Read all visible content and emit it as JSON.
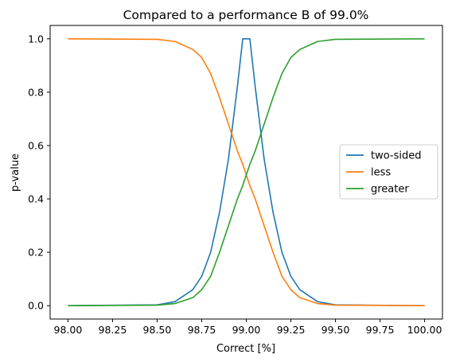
{
  "chart_data": {
    "type": "line",
    "title": "Compared to a performance B of 99.0%",
    "xlabel": "Correct [%]",
    "ylabel": "p-value",
    "xlim": [
      97.9,
      100.1
    ],
    "ylim": [
      -0.05,
      1.05
    ],
    "xticks": [
      "98.00",
      "98.25",
      "98.50",
      "98.75",
      "99.00",
      "99.25",
      "99.50",
      "99.75",
      "100.00"
    ],
    "yticks": [
      "0.0",
      "0.2",
      "0.4",
      "0.6",
      "0.8",
      "1.0"
    ],
    "grid": false,
    "legend_position": "center-right",
    "x": [
      98.0,
      98.5,
      98.6,
      98.7,
      98.75,
      98.8,
      98.85,
      98.9,
      98.95,
      98.98,
      99.0,
      99.02,
      99.05,
      99.1,
      99.15,
      99.2,
      99.25,
      99.3,
      99.4,
      99.5,
      100.0
    ],
    "series": [
      {
        "name": "two-sided",
        "color": "#1f77b4",
        "values": [
          0.0,
          0.003,
          0.015,
          0.06,
          0.11,
          0.2,
          0.35,
          0.55,
          0.82,
          1.0,
          1.0,
          1.0,
          0.82,
          0.55,
          0.35,
          0.2,
          0.11,
          0.06,
          0.015,
          0.003,
          0.0
        ]
      },
      {
        "name": "less",
        "color": "#ff7f0e",
        "values": [
          1.0,
          0.998,
          0.99,
          0.96,
          0.93,
          0.87,
          0.78,
          0.68,
          0.58,
          0.53,
          0.49,
          0.45,
          0.4,
          0.3,
          0.2,
          0.11,
          0.06,
          0.03,
          0.008,
          0.002,
          0.0
        ]
      },
      {
        "name": "greater",
        "color": "#2ca02c",
        "values": [
          0.0,
          0.002,
          0.008,
          0.03,
          0.06,
          0.11,
          0.2,
          0.3,
          0.4,
          0.45,
          0.49,
          0.53,
          0.58,
          0.68,
          0.78,
          0.87,
          0.93,
          0.96,
          0.99,
          0.998,
          1.0
        ]
      }
    ]
  }
}
